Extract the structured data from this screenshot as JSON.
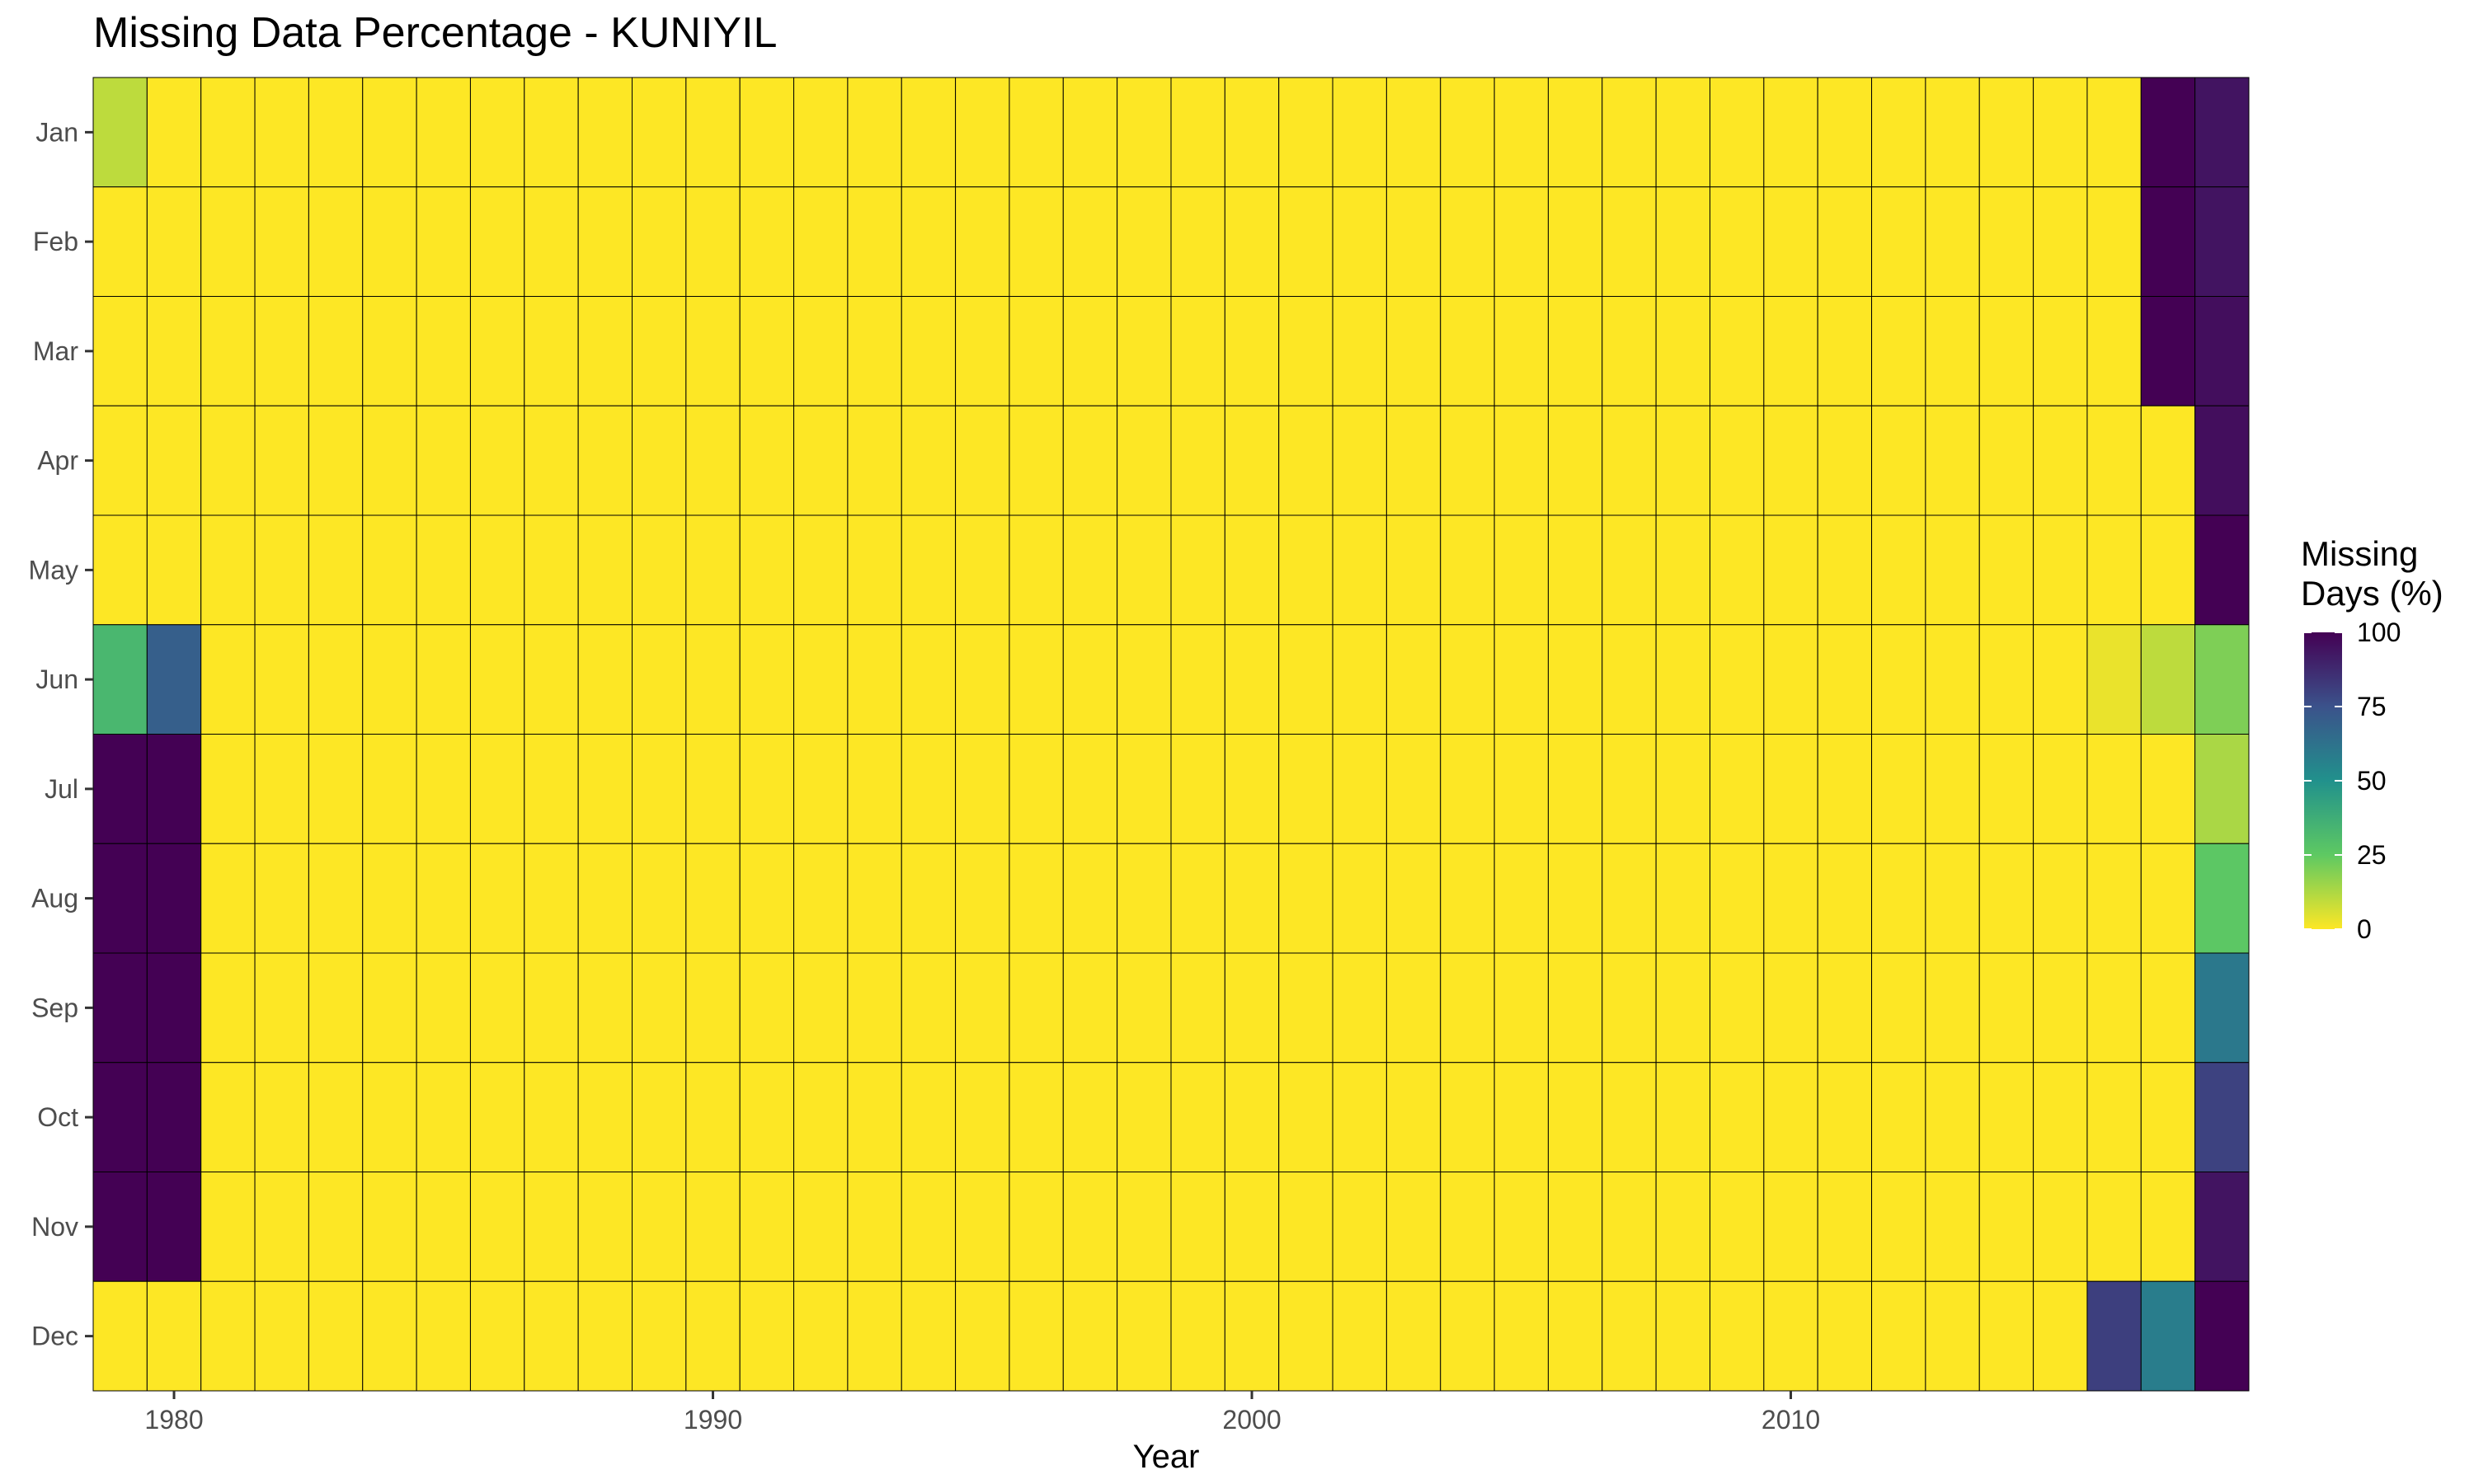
{
  "chart_data": {
    "type": "heatmap",
    "title": "Missing Data Percentage - KUNIYIL",
    "xlabel": "Year",
    "ylabel": "",
    "x": [
      1979,
      1980,
      1981,
      1982,
      1983,
      1984,
      1985,
      1986,
      1987,
      1988,
      1989,
      1990,
      1991,
      1992,
      1993,
      1994,
      1995,
      1996,
      1997,
      1998,
      1999,
      2000,
      2001,
      2002,
      2003,
      2004,
      2005,
      2006,
      2007,
      2008,
      2009,
      2010,
      2011,
      2012,
      2013,
      2014,
      2015,
      2016,
      2017,
      2018
    ],
    "x_ticks": [
      1980,
      1990,
      2000,
      2010
    ],
    "y": [
      "Jan",
      "Feb",
      "Mar",
      "Apr",
      "May",
      "Jun",
      "Jul",
      "Aug",
      "Sep",
      "Oct",
      "Nov",
      "Dec"
    ],
    "legend": {
      "title": "Missing\nDays (%)",
      "ticks": [
        100,
        75,
        50,
        25,
        0
      ],
      "range": [
        0,
        100
      ],
      "position": "right"
    },
    "grid": false,
    "nonzero_cells": [
      {
        "year": 1979,
        "month": "Jan",
        "value": 10
      },
      {
        "year": 1979,
        "month": "Jun",
        "value": 33
      },
      {
        "year": 1980,
        "month": "Jun",
        "value": 70
      },
      {
        "year": 1979,
        "month": "Jul",
        "value": 100
      },
      {
        "year": 1980,
        "month": "Jul",
        "value": 100
      },
      {
        "year": 1979,
        "month": "Aug",
        "value": 100
      },
      {
        "year": 1980,
        "month": "Aug",
        "value": 100
      },
      {
        "year": 1979,
        "month": "Sep",
        "value": 100
      },
      {
        "year": 1980,
        "month": "Sep",
        "value": 100
      },
      {
        "year": 1979,
        "month": "Oct",
        "value": 100
      },
      {
        "year": 1980,
        "month": "Oct",
        "value": 100
      },
      {
        "year": 1979,
        "month": "Nov",
        "value": 100
      },
      {
        "year": 1980,
        "month": "Nov",
        "value": 100
      },
      {
        "year": 2017,
        "month": "Jan",
        "value": 100
      },
      {
        "year": 2017,
        "month": "Feb",
        "value": 100
      },
      {
        "year": 2017,
        "month": "Mar",
        "value": 100
      },
      {
        "year": 2016,
        "month": "Jun",
        "value": 3
      },
      {
        "year": 2017,
        "month": "Jun",
        "value": 10
      },
      {
        "year": 2016,
        "month": "Dec",
        "value": 81
      },
      {
        "year": 2017,
        "month": "Dec",
        "value": 58
      },
      {
        "year": 2018,
        "month": "Jan",
        "value": 94
      },
      {
        "year": 2018,
        "month": "Feb",
        "value": 94
      },
      {
        "year": 2018,
        "month": "Mar",
        "value": 96
      },
      {
        "year": 2018,
        "month": "Apr",
        "value": 96
      },
      {
        "year": 2018,
        "month": "May",
        "value": 100
      },
      {
        "year": 2018,
        "month": "Jun",
        "value": 20
      },
      {
        "year": 2018,
        "month": "Jul",
        "value": 13
      },
      {
        "year": 2018,
        "month": "Aug",
        "value": 26
      },
      {
        "year": 2018,
        "month": "Sep",
        "value": 60
      },
      {
        "year": 2018,
        "month": "Oct",
        "value": 80
      },
      {
        "year": 2018,
        "month": "Nov",
        "value": 94
      },
      {
        "year": 2018,
        "month": "Dec",
        "value": 100
      }
    ],
    "default_value": 0
  }
}
